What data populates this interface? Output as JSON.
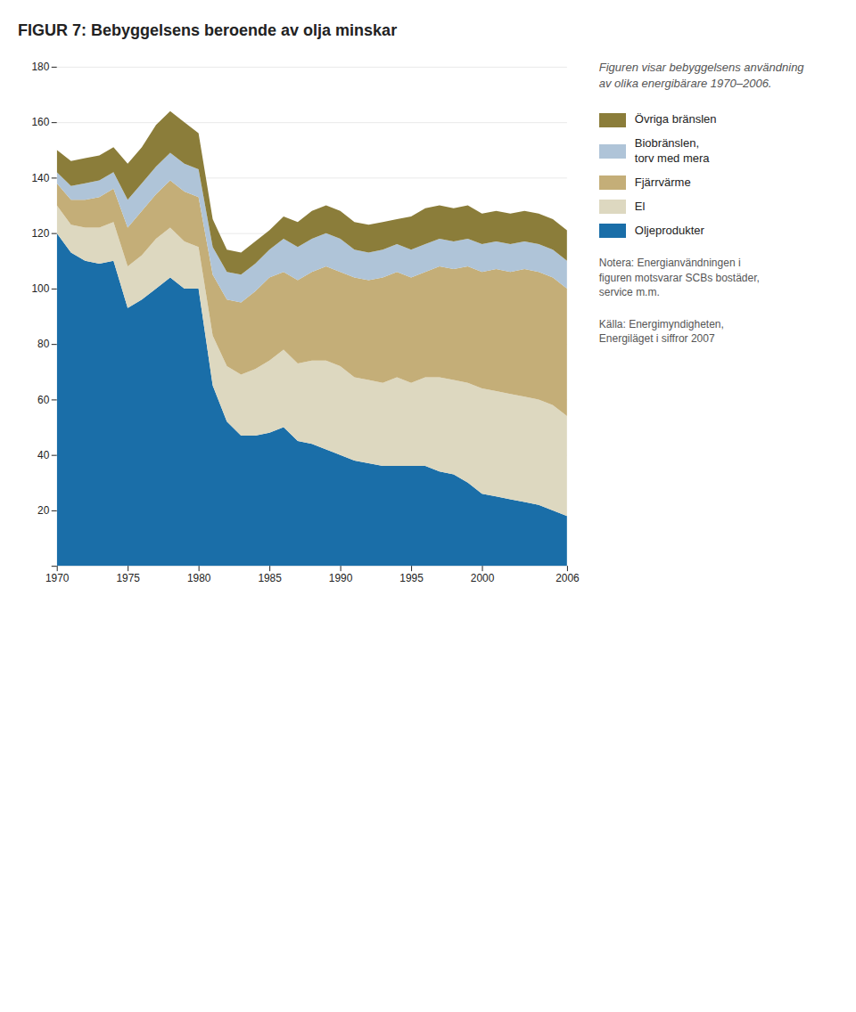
{
  "chart_data": {
    "type": "area",
    "title": "FIGUR 7: Bebyggelsens beroende av olja minskar",
    "subtitle": "Figuren visar bebyggelsens användning\nav olika energibärare 1970–2006.",
    "annotations": [
      "Notera: Energianvändningen i\nfiguren motsvarar SCBs bostäder,\nservice m.m.",
      "Källa: Energimyndigheten,\nEnergiläget i siffror 2007"
    ],
    "stacked": true,
    "grid": true,
    "x": [
      1970,
      1971,
      1972,
      1973,
      1974,
      1975,
      1976,
      1977,
      1978,
      1979,
      1980,
      1981,
      1982,
      1983,
      1984,
      1985,
      1986,
      1987,
      1988,
      1989,
      1990,
      1991,
      1992,
      1993,
      1994,
      1995,
      1996,
      1997,
      1998,
      1999,
      2000,
      2001,
      2002,
      2003,
      2004,
      2005,
      2006
    ],
    "series": [
      {
        "name": "Oljeprodukter",
        "color": "#1a6ea8",
        "values": [
          120,
          113,
          110,
          109,
          110,
          93,
          96,
          100,
          104,
          100,
          100,
          65,
          52,
          47,
          47,
          48,
          50,
          45,
          44,
          42,
          40,
          38,
          37,
          36,
          36,
          36,
          36,
          34,
          33,
          30,
          26,
          25,
          24,
          23,
          22,
          20,
          18
        ]
      },
      {
        "name": "El",
        "color": "#ddd8c0",
        "values": [
          10,
          10,
          12,
          13,
          14,
          15,
          16,
          18,
          18,
          17,
          15,
          18,
          20,
          22,
          24,
          26,
          28,
          28,
          30,
          32,
          32,
          30,
          30,
          30,
          32,
          30,
          32,
          34,
          34,
          36,
          38,
          38,
          38,
          38,
          38,
          38,
          36
        ]
      },
      {
        "name": "Fjärrvärme",
        "color": "#c4ae78",
        "values": [
          8,
          9,
          10,
          11,
          12,
          14,
          16,
          16,
          17,
          18,
          18,
          22,
          24,
          26,
          28,
          30,
          28,
          30,
          32,
          34,
          34,
          36,
          36,
          38,
          38,
          38,
          38,
          40,
          40,
          42,
          42,
          44,
          44,
          46,
          46,
          46,
          46
        ]
      },
      {
        "name": "Biobränslen,\ntorv med mera",
        "color": "#afc4d8",
        "values": [
          4,
          5,
          6,
          6,
          6,
          10,
          10,
          10,
          10,
          10,
          10,
          10,
          10,
          10,
          10,
          10,
          12,
          12,
          12,
          12,
          12,
          10,
          10,
          10,
          10,
          10,
          10,
          10,
          10,
          10,
          10,
          10,
          10,
          10,
          10,
          10,
          10
        ]
      },
      {
        "name": "Övriga bränslen",
        "color": "#8b7d3a",
        "values": [
          8,
          9,
          9,
          9,
          9,
          13,
          13,
          15,
          15,
          15,
          13,
          10,
          8,
          8,
          8,
          7,
          8,
          9,
          10,
          10,
          10,
          10,
          10,
          10,
          9,
          12,
          13,
          12,
          12,
          12,
          11,
          11,
          11,
          11,
          11,
          11,
          11
        ]
      }
    ],
    "xlim": [
      1970,
      2006
    ],
    "xticks": [
      1970,
      1975,
      1980,
      1985,
      1990,
      1995,
      2000,
      2006
    ],
    "ylim": [
      0,
      180
    ],
    "yticks": [
      {
        "value": 0,
        "label": ""
      },
      20,
      40,
      60,
      80,
      100,
      120,
      140,
      160,
      180
    ]
  }
}
